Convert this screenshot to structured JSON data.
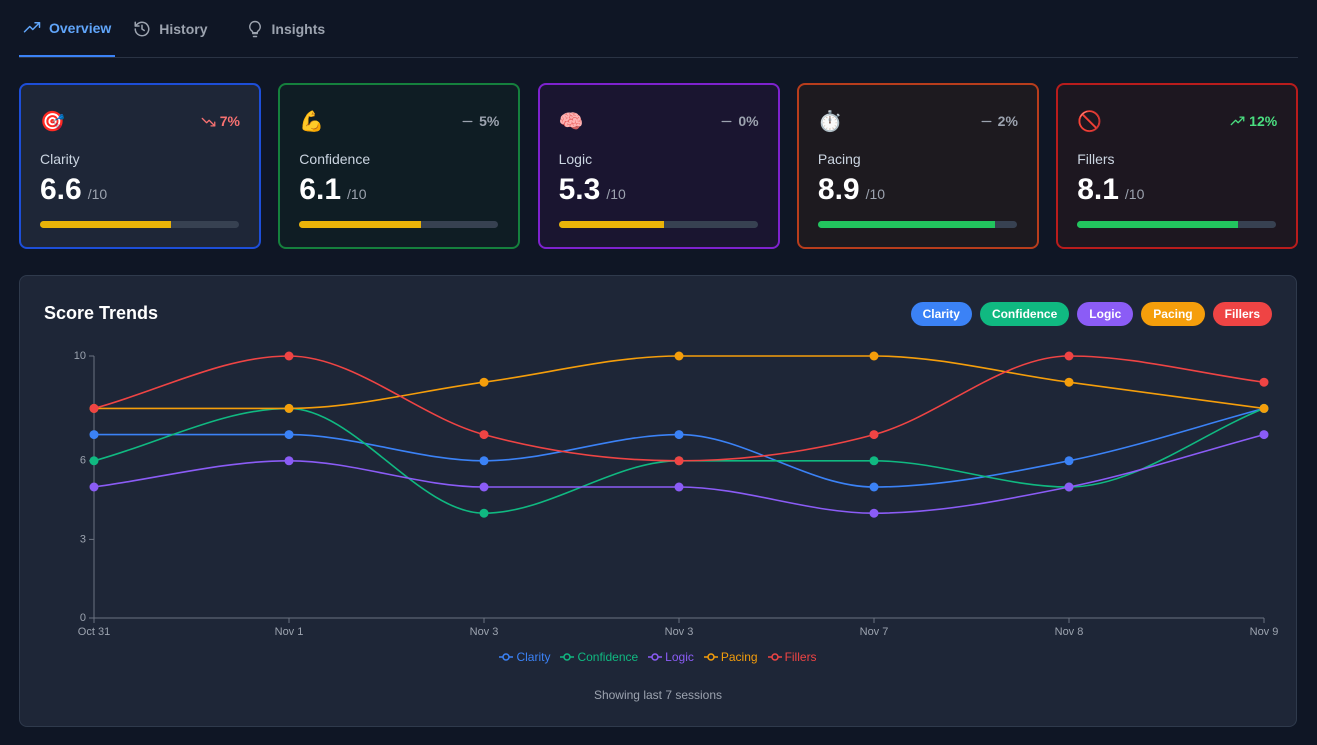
{
  "tabs": [
    {
      "label": "Overview",
      "active": true
    },
    {
      "label": "History",
      "active": false
    },
    {
      "label": "Insights",
      "active": false
    }
  ],
  "cards": [
    {
      "icon": "🎯",
      "label": "Clarity",
      "value": 6.6,
      "change": "7%",
      "trend": "down",
      "max": {
        "value": 10,
        "label": "/10"
      },
      "border": "#1d4ed8",
      "bar_color": "#eab308"
    },
    {
      "icon": "💪",
      "label": "Confidence",
      "value": 6.1,
      "change": "5%",
      "trend": "flat",
      "max": {
        "value": 10,
        "label": "/10"
      },
      "border": "#15803d",
      "bar_color": "#eab308"
    },
    {
      "icon": "🧠",
      "label": "Logic",
      "value": 5.3,
      "change": "0%",
      "trend": "flat",
      "max": {
        "value": 10,
        "label": "/10"
      },
      "border": "#7e22ce",
      "bar_color": "#eab308"
    },
    {
      "icon": "⏱️",
      "label": "Pacing",
      "value": 8.9,
      "change": "2%",
      "trend": "flat",
      "max": {
        "value": 10,
        "label": "/10"
      },
      "border": "#b83d1c",
      "bar_color": "#22c55e"
    },
    {
      "icon": "🚫",
      "label": "Fillers",
      "value": 8.1,
      "change": "12%",
      "trend": "up",
      "max": {
        "value": 10,
        "label": "/10"
      },
      "border": "#b91c1c",
      "bar_color": "#22c55e"
    }
  ],
  "chart_data": {
    "type": "line",
    "title": "Score Trends",
    "footer": "Showing last 7 sessions",
    "categories": [
      "Oct 31",
      "Nov 1",
      "Nov 3",
      "Nov 3",
      "Nov 7",
      "Nov 8",
      "Nov 9"
    ],
    "ylim": [
      0,
      10
    ],
    "yticks": [
      0,
      3,
      6,
      10
    ],
    "grid": false,
    "series": [
      {
        "name": "Clarity",
        "color": "#3b82f6",
        "values": [
          7,
          7,
          6,
          7,
          5,
          6,
          8
        ]
      },
      {
        "name": "Confidence",
        "color": "#10b981",
        "values": [
          6,
          8,
          4,
          6,
          6,
          5,
          8
        ]
      },
      {
        "name": "Logic",
        "color": "#8b5cf6",
        "values": [
          5,
          6,
          5,
          5,
          4,
          5,
          7
        ]
      },
      {
        "name": "Pacing",
        "color": "#f59e0b",
        "values": [
          8,
          8,
          9,
          10,
          10,
          9,
          8
        ]
      },
      {
        "name": "Fillers",
        "color": "#ef4444",
        "values": [
          8,
          10,
          7,
          6,
          7,
          10,
          9
        ]
      }
    ]
  }
}
